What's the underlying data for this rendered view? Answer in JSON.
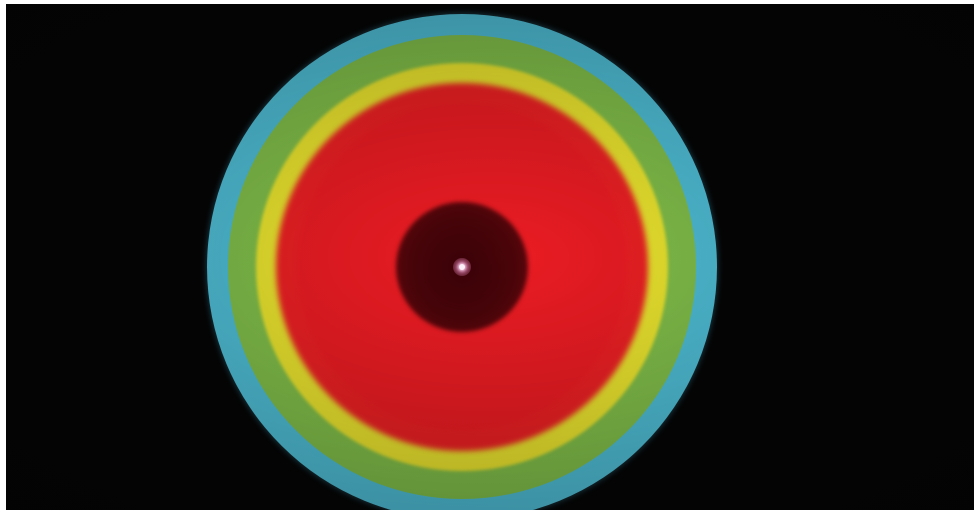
{
  "image": {
    "subject": "",
    "colors": {
      "background": "#050505",
      "outer_ring": "#56c5dd",
      "second_ring": "#84c24b",
      "third_ring": "#f0e92c",
      "inner_field": "#ec1c23",
      "core": "#4a0409",
      "center_point": "#fff3fb"
    }
  }
}
